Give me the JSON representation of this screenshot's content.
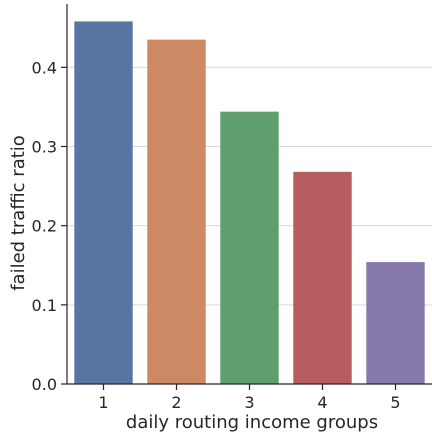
{
  "chart_data": {
    "type": "bar",
    "categories": [
      "1",
      "2",
      "3",
      "4",
      "5"
    ],
    "values": [
      0.458,
      0.435,
      0.344,
      0.268,
      0.154
    ],
    "colors": [
      "#5975a4",
      "#cc8963",
      "#5f9e6e",
      "#b55d60",
      "#857aab"
    ],
    "xlabel": "daily routing income groups",
    "ylabel": "failed traffic ratio",
    "ylim": [
      0,
      0.48
    ],
    "yticks": [
      0.0,
      0.1,
      0.2,
      0.3,
      0.4
    ],
    "ytick_labels": [
      "0.0",
      "0.1",
      "0.2",
      "0.3",
      "0.4"
    ],
    "grid": "horizontal"
  }
}
